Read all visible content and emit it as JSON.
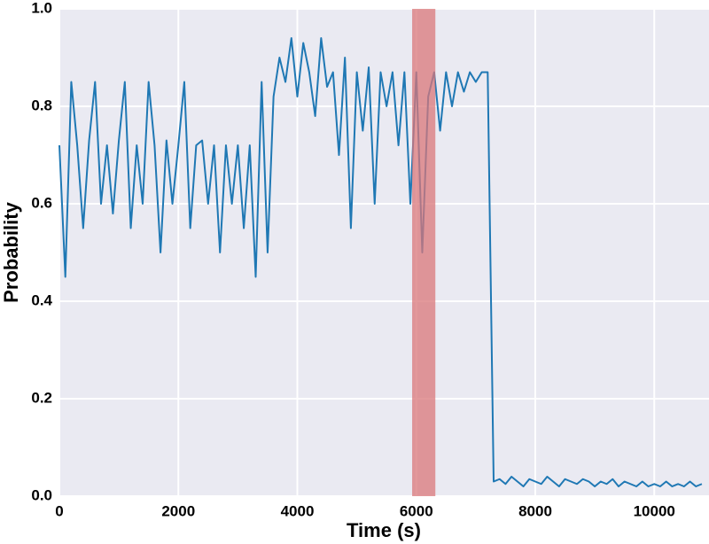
{
  "chart_data": {
    "type": "line",
    "xlabel": "Time (s)",
    "ylabel": "Probability",
    "x": [
      0,
      100,
      200,
      300,
      400,
      500,
      600,
      700,
      800,
      900,
      1000,
      1100,
      1200,
      1300,
      1400,
      1500,
      1600,
      1700,
      1800,
      1900,
      2000,
      2100,
      2200,
      2300,
      2400,
      2500,
      2600,
      2700,
      2800,
      2900,
      3000,
      3100,
      3200,
      3300,
      3400,
      3500,
      3600,
      3700,
      3800,
      3900,
      4000,
      4100,
      4200,
      4300,
      4400,
      4500,
      4600,
      4700,
      4800,
      4900,
      5000,
      5100,
      5200,
      5300,
      5400,
      5500,
      5600,
      5700,
      5800,
      5900,
      6000,
      6100,
      6200,
      6300,
      6400,
      6500,
      6600,
      6700,
      6800,
      6900,
      7000,
      7100,
      7200,
      7300,
      7400,
      7500,
      7600,
      7700,
      7800,
      7900,
      8000,
      8100,
      8200,
      8300,
      8400,
      8500,
      8600,
      8700,
      8800,
      8900,
      9000,
      9100,
      9200,
      9300,
      9400,
      9500,
      9600,
      9700,
      9800,
      9900,
      10000,
      10100,
      10200,
      10300,
      10400,
      10500,
      10600,
      10700,
      10800
    ],
    "series": [
      {
        "color": "#1f78b4",
        "values": [
          0.72,
          0.45,
          0.85,
          0.72,
          0.55,
          0.73,
          0.85,
          0.6,
          0.72,
          0.58,
          0.73,
          0.85,
          0.55,
          0.72,
          0.6,
          0.85,
          0.72,
          0.5,
          0.73,
          0.6,
          0.72,
          0.85,
          0.55,
          0.72,
          0.73,
          0.6,
          0.72,
          0.5,
          0.72,
          0.6,
          0.72,
          0.55,
          0.72,
          0.45,
          0.85,
          0.5,
          0.82,
          0.9,
          0.85,
          0.94,
          0.82,
          0.93,
          0.87,
          0.78,
          0.94,
          0.84,
          0.87,
          0.7,
          0.9,
          0.55,
          0.87,
          0.75,
          0.88,
          0.6,
          0.87,
          0.8,
          0.87,
          0.72,
          0.87,
          0.6,
          0.87,
          0.5,
          0.82,
          0.87,
          0.75,
          0.87,
          0.8,
          0.87,
          0.83,
          0.87,
          0.85,
          0.87,
          0.87,
          0.03,
          0.035,
          0.025,
          0.04,
          0.03,
          0.02,
          0.035,
          0.03,
          0.025,
          0.04,
          0.03,
          0.02,
          0.035,
          0.03,
          0.025,
          0.035,
          0.03,
          0.02,
          0.03,
          0.025,
          0.035,
          0.02,
          0.03,
          0.025,
          0.02,
          0.03,
          0.02,
          0.025,
          0.02,
          0.03,
          0.02,
          0.025,
          0.02,
          0.03,
          0.02,
          0.025
        ]
      }
    ],
    "highlight": {
      "range": [
        5930,
        6320
      ],
      "color": "#d9777a"
    },
    "xlim": [
      0,
      10920
    ],
    "ylim": [
      0,
      1
    ],
    "xticks": [
      0,
      2000,
      4000,
      6000,
      8000,
      10000
    ],
    "yticks": [
      {
        "value": 0,
        "label": "0.0"
      },
      0.2,
      0.4,
      0.6,
      0.8,
      {
        "value": 1,
        "label": "1.0"
      }
    ],
    "grid": true
  }
}
